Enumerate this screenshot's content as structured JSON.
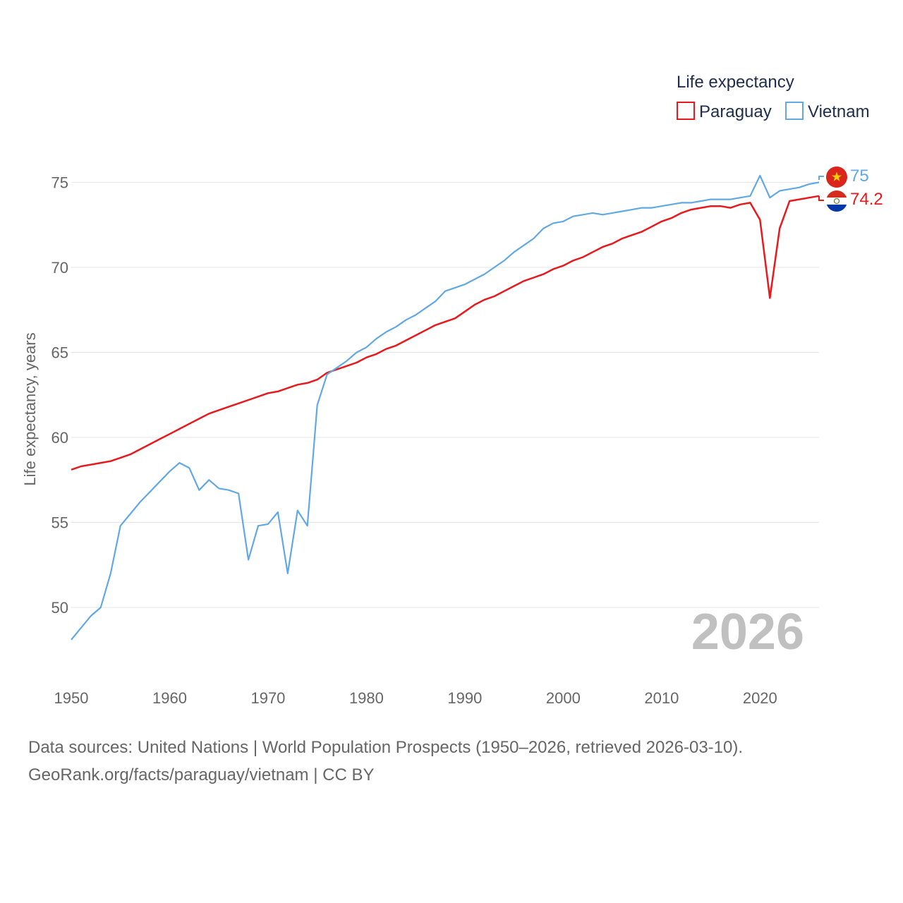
{
  "chart_data": {
    "type": "line",
    "legend_title": "Life expectancy",
    "ylabel": "Life expectancy, years",
    "xlabel": "",
    "year_label": "2026",
    "xlim": [
      1950,
      2026
    ],
    "ylim": [
      47.5,
      76.5
    ],
    "yticks": [
      50,
      55,
      60,
      65,
      70,
      75
    ],
    "xticks": [
      1950,
      1960,
      1970,
      1980,
      1990,
      2000,
      2010,
      2020
    ],
    "x": [
      1950,
      1951,
      1952,
      1953,
      1954,
      1955,
      1956,
      1957,
      1958,
      1959,
      1960,
      1961,
      1962,
      1963,
      1964,
      1965,
      1966,
      1967,
      1968,
      1969,
      1970,
      1971,
      1972,
      1973,
      1974,
      1975,
      1976,
      1977,
      1978,
      1979,
      1980,
      1981,
      1982,
      1983,
      1984,
      1985,
      1986,
      1987,
      1988,
      1989,
      1990,
      1991,
      1992,
      1993,
      1994,
      1995,
      1996,
      1997,
      1998,
      1999,
      2000,
      2001,
      2002,
      2003,
      2004,
      2005,
      2006,
      2007,
      2008,
      2009,
      2010,
      2011,
      2012,
      2013,
      2014,
      2015,
      2016,
      2017,
      2018,
      2019,
      2020,
      2021,
      2022,
      2023,
      2024,
      2025,
      2026
    ],
    "series": [
      {
        "name": "Paraguay",
        "color": "#e8191d",
        "end_label": "74.2",
        "flag": "paraguay-flag",
        "values": [
          58.1,
          58.3,
          58.4,
          58.5,
          58.6,
          58.8,
          59.0,
          59.3,
          59.6,
          59.9,
          60.2,
          60.5,
          60.8,
          61.1,
          61.4,
          61.6,
          61.8,
          62.0,
          62.2,
          62.4,
          62.6,
          62.7,
          62.9,
          63.1,
          63.2,
          63.4,
          63.8,
          64.0,
          64.2,
          64.4,
          64.7,
          64.9,
          65.2,
          65.4,
          65.7,
          66.0,
          66.3,
          66.6,
          66.8,
          67.0,
          67.4,
          67.8,
          68.1,
          68.3,
          68.6,
          68.9,
          69.2,
          69.4,
          69.6,
          69.9,
          70.1,
          70.4,
          70.6,
          70.9,
          71.2,
          71.4,
          71.7,
          71.9,
          72.1,
          72.4,
          72.7,
          72.9,
          73.2,
          73.4,
          73.5,
          73.6,
          73.6,
          73.5,
          73.7,
          73.8,
          72.8,
          68.2,
          72.3,
          73.9,
          74.0,
          74.1,
          74.2
        ]
      },
      {
        "name": "Vietnam",
        "color": "#62a8e5",
        "end_label": "75",
        "flag": "vietnam-flag",
        "values": [
          48.1,
          48.8,
          49.5,
          50.0,
          52.0,
          54.8,
          55.5,
          56.2,
          56.8,
          57.4,
          58.0,
          58.5,
          58.2,
          56.9,
          57.5,
          57.0,
          56.9,
          56.7,
          52.8,
          54.8,
          54.9,
          55.6,
          52.0,
          55.7,
          54.8,
          61.9,
          63.7,
          64.1,
          64.5,
          65.0,
          65.3,
          65.8,
          66.2,
          66.5,
          66.9,
          67.2,
          67.6,
          68.0,
          68.6,
          68.8,
          69.0,
          69.3,
          69.6,
          70.0,
          70.4,
          70.9,
          71.3,
          71.7,
          72.3,
          72.6,
          72.7,
          73.0,
          73.1,
          73.2,
          73.1,
          73.2,
          73.3,
          73.4,
          73.5,
          73.5,
          73.6,
          73.7,
          73.8,
          73.8,
          73.9,
          74.0,
          74.0,
          74.0,
          74.1,
          74.2,
          75.4,
          74.1,
          74.5,
          74.6,
          74.7,
          74.9,
          75.0
        ]
      }
    ]
  },
  "footer": {
    "line1": "Data sources: United Nations | World Population Prospects (1950–2026, retrieved 2026-03-10).",
    "line2": "GeoRank.org/facts/paraguay/vietnam | CC BY"
  }
}
